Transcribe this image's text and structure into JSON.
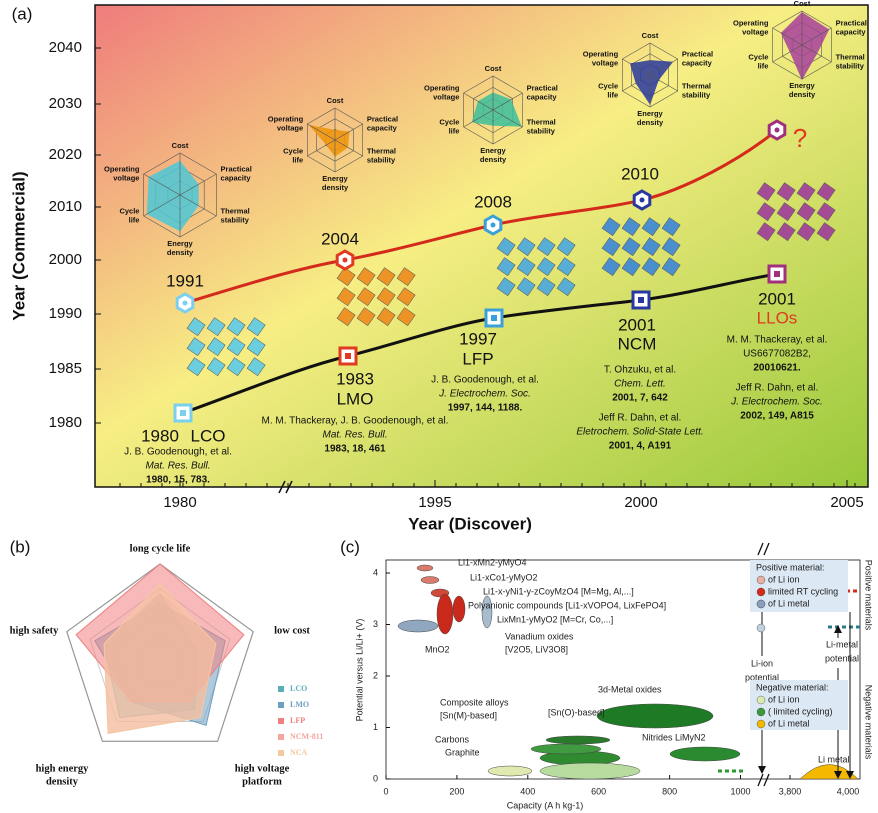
{
  "panel_a": {
    "label": "(a)",
    "y_axis_label": "Year (Commercial)",
    "x_axis_label": "Year (Discover)",
    "yticks": [
      2040,
      2030,
      2020,
      2010,
      2000,
      1990,
      1985,
      1980
    ],
    "xticks": [
      1980,
      1995,
      2000,
      2005
    ],
    "radar_axes": [
      [
        "Cost"
      ],
      [
        "Practical",
        "capacity"
      ],
      [
        "Thermal",
        "stability"
      ],
      [
        "Energy",
        "density"
      ],
      [
        "Cycle",
        "life"
      ],
      [
        "Operating",
        "voltage"
      ]
    ],
    "materials": [
      {
        "name": "LCO",
        "discover": "1980",
        "commercial": "1991",
        "color": "#4dc8d8",
        "marker_color": "#7ad0ee",
        "reference": [
          "J. B. Goodenough, et al.",
          "Mat. Res. Bull.",
          "1980, 15, 783."
        ],
        "radar": [
          0.8,
          0.5,
          0.5,
          0.85,
          0.9,
          0.85
        ]
      },
      {
        "name": "LMO",
        "discover": "1983",
        "commercial": "2004",
        "color": "#f0940a",
        "marker_color": "#e03a20",
        "reference": [
          "M. M. Thackeray, J. B. Goodenough, et al.",
          "Mat. Res. Bull.",
          "1983, 18, 461"
        ],
        "radar": [
          0.3,
          0.5,
          0.45,
          0.5,
          0.3,
          0.9
        ]
      },
      {
        "name": "LFP",
        "discover": "1997",
        "commercial": "2008",
        "color": "#3cbf9c",
        "marker_color": "#3aa0d8",
        "reference": [
          "J. B. Goodenough, et al.",
          "J. Electrochem. Soc.",
          "1997, 144, 1188."
        ],
        "radar": [
          0.5,
          0.6,
          0.95,
          0.45,
          0.7,
          0.5
        ]
      },
      {
        "name": "NCM",
        "discover": "2001",
        "commercial": "2010",
        "color": "#2838a0",
        "marker_color": "#2838a0",
        "reference": [
          "T. Ohzuku,  et al.",
          "Chem. Lett.",
          "2001, 7, 642",
          "Jeff R. Dahn, et al.",
          "Eletrochem. Solid-State Lett.",
          "2001, 4, A191"
        ],
        "radar": [
          0.45,
          0.8,
          0.3,
          0.9,
          0.5,
          0.7
        ]
      },
      {
        "name": "LLOs",
        "discover": "2001",
        "commercial": "?",
        "color": "#a8409c",
        "marker_color": "#a0307c",
        "reference": [
          "M. M. Thackeray, et al.",
          "US6677082B2,",
          "20010621.",
          "Jeff R. Dahn, et al.",
          "J. Electrochem. Soc.",
          "2002, 149, A815"
        ],
        "radar": [
          0.95,
          0.9,
          0.5,
          1.0,
          0.4,
          0.7
        ]
      }
    ]
  },
  "panel_b": {
    "label": "(b)",
    "axes": [
      [
        "long cycle life"
      ],
      [
        "low cost"
      ],
      [
        "high voltage",
        "platform"
      ],
      [
        "high energy",
        "density"
      ],
      [
        "high safety"
      ]
    ],
    "series": [
      {
        "name": "LCO",
        "color": "#5aaeba",
        "values": [
          3.5,
          2,
          3,
          3.5,
          3
        ]
      },
      {
        "name": "LMO",
        "color": "#6c9fc0",
        "values": [
          3,
          3.5,
          4,
          2.5,
          3.5
        ]
      },
      {
        "name": "LFP",
        "color": "#f08080",
        "values": [
          5,
          4.5,
          2.5,
          2.5,
          4.5
        ]
      },
      {
        "name": "NCM-811",
        "color": "#f4a5a0",
        "values": [
          3.5,
          3,
          3.5,
          4.5,
          3
        ]
      },
      {
        "name": "NCA",
        "color": "#f5c9a0",
        "values": [
          4,
          3,
          3.5,
          4.5,
          3
        ]
      }
    ]
  },
  "panel_c": {
    "label": "(c)",
    "y_axis_label": "Potential versus Li/Li+ (V)",
    "x_axis_label": "Capacity  (A h kg-1)",
    "yticks": [
      0,
      1,
      2,
      3,
      4
    ],
    "xticks": [
      0,
      200,
      400,
      600,
      800,
      1000,
      {
        "value": 3800,
        "label": "3,800"
      },
      {
        "value": 4000,
        "label": "4,000"
      }
    ],
    "side_labels": [
      "Positive materials",
      "Negative materials"
    ],
    "annotations": [
      "Li1-xMn2-yMyO4",
      "Li1-xCo1-yMyO2",
      "Li1-x-yNi1-y-zCoyMzO4 [M=Mg, Al,...]",
      "Polyanionic compounds [Li1-xVOPO4, LixFePO4]",
      "LixMn1-yMyO2 [M=Cr, Co,...]",
      "Vanadium oxides",
      "[V2O5, LiV3O8]",
      "MnO2",
      "Li-ion",
      "potential",
      "Li-metal",
      "potential",
      "Composite alloys",
      "[Sn(M)-based]",
      "[Sn(O)-based]",
      "Carbons",
      "Graphite",
      "3d-Metal oxides",
      "Nitrides LiMyN2",
      "Li metal"
    ],
    "positive_box": [
      "Positive material:",
      "of Li ion",
      "limited RT cycling",
      "of Li metal"
    ],
    "negative_box": [
      "Negative material:",
      "of Li ion",
      "( limited cycling)",
      "of Li metal"
    ]
  }
}
